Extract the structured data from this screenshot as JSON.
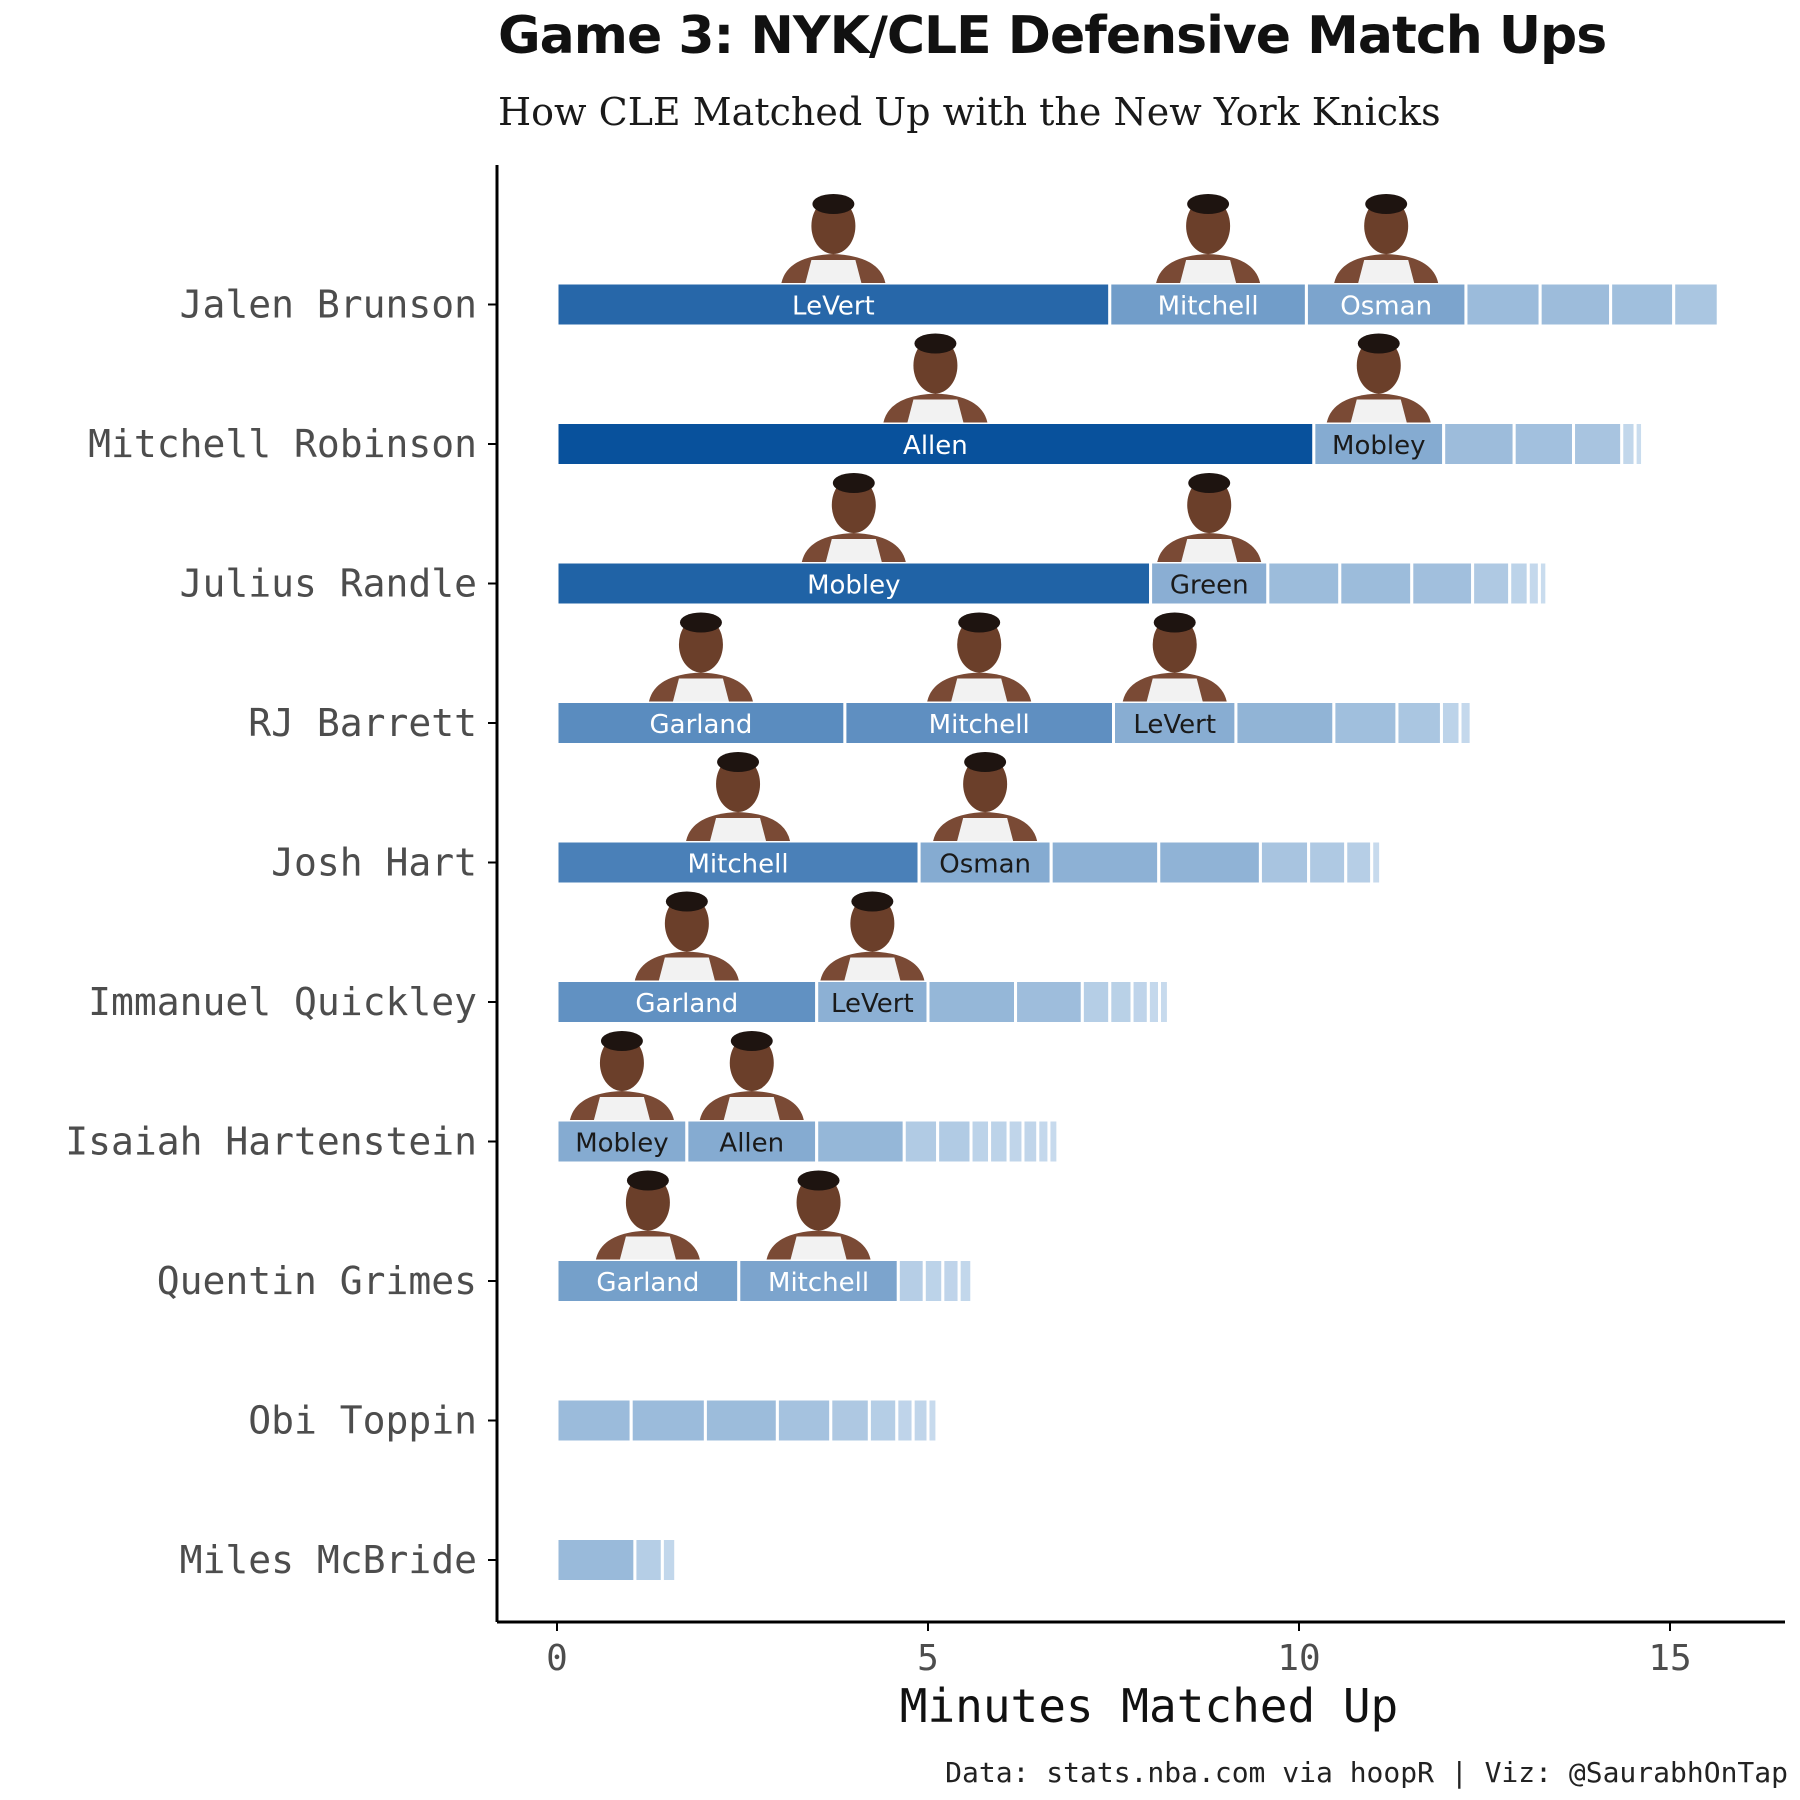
{
  "title": "Game 3: NYK/CLE Defensive Match Ups",
  "subtitle": "How CLE Matched Up with the New York Knicks",
  "caption": "Data: stats.nba.com via hoopR | Viz: @SaurabhOnTap",
  "colors": {
    "scale_low": "#deebf7",
    "scale_high": "#08519c",
    "axis": "#000000",
    "tick_text": "#4d4d4d"
  },
  "chart_data": {
    "type": "bar",
    "orientation": "horizontal",
    "stacked": true,
    "xlabel": "Minutes Matched Up",
    "ylabel": "",
    "xlim": [
      0,
      16.5
    ],
    "x_ticks": [
      "0",
      "5",
      "10",
      "15"
    ],
    "grid": false,
    "legend": "none",
    "note": "Each bar is one Knicks player; segments are time guarded by each CLE defender, darker = more minutes.",
    "rows": [
      {
        "player": "Jalen Brunson",
        "segments": [
          {
            "defender": "LeVert",
            "minutes": 7.45
          },
          {
            "defender": "Mitchell",
            "minutes": 2.65
          },
          {
            "defender": "Osman",
            "minutes": 2.15
          },
          {
            "minutes": 1.0
          },
          {
            "minutes": 0.95
          },
          {
            "minutes": 0.85
          },
          {
            "minutes": 0.6
          }
        ]
      },
      {
        "player": "Mitchell Robinson",
        "segments": [
          {
            "defender": "Allen",
            "minutes": 10.2
          },
          {
            "defender": "Mobley",
            "minutes": 1.75
          },
          {
            "minutes": 0.95
          },
          {
            "minutes": 0.8
          },
          {
            "minutes": 0.65
          },
          {
            "minutes": 0.18
          },
          {
            "minutes": 0.1
          }
        ]
      },
      {
        "player": "Julius Randle",
        "segments": [
          {
            "defender": "Mobley",
            "minutes": 8.0
          },
          {
            "defender": "Green",
            "minutes": 1.58
          },
          {
            "minutes": 0.97
          },
          {
            "minutes": 0.97
          },
          {
            "minutes": 0.82
          },
          {
            "minutes": 0.5
          },
          {
            "minutes": 0.25
          },
          {
            "minutes": 0.15
          },
          {
            "minutes": 0.1
          }
        ]
      },
      {
        "player": "RJ Barrett",
        "segments": [
          {
            "defender": "Garland",
            "minutes": 3.88
          },
          {
            "defender": "Mitchell",
            "minutes": 3.62
          },
          {
            "defender": "LeVert",
            "minutes": 1.65
          },
          {
            "minutes": 1.32
          },
          {
            "minutes": 0.85
          },
          {
            "minutes": 0.6
          },
          {
            "minutes": 0.25
          },
          {
            "minutes": 0.15
          }
        ]
      },
      {
        "player": "Josh Hart",
        "segments": [
          {
            "defender": "Mitchell",
            "minutes": 4.88
          },
          {
            "defender": "Osman",
            "minutes": 1.78
          },
          {
            "minutes": 1.45
          },
          {
            "minutes": 1.37
          },
          {
            "minutes": 0.65
          },
          {
            "minutes": 0.5
          },
          {
            "minutes": 0.35
          },
          {
            "minutes": 0.12
          }
        ]
      },
      {
        "player": "Immanuel Quickley",
        "segments": [
          {
            "defender": "Garland",
            "minutes": 3.5
          },
          {
            "defender": "LeVert",
            "minutes": 1.5
          },
          {
            "minutes": 1.18
          },
          {
            "minutes": 0.9
          },
          {
            "minutes": 0.37
          },
          {
            "minutes": 0.3
          },
          {
            "minutes": 0.22
          },
          {
            "minutes": 0.15
          },
          {
            "minutes": 0.12
          }
        ]
      },
      {
        "player": "Isaiah Hartenstein",
        "segments": [
          {
            "defender": "Mobley",
            "minutes": 1.75
          },
          {
            "defender": "Allen",
            "minutes": 1.75
          },
          {
            "minutes": 1.18
          },
          {
            "minutes": 0.45
          },
          {
            "minutes": 0.45
          },
          {
            "minutes": 0.25
          },
          {
            "minutes": 0.25
          },
          {
            "minutes": 0.2
          },
          {
            "minutes": 0.2
          },
          {
            "minutes": 0.15
          },
          {
            "minutes": 0.12
          }
        ]
      },
      {
        "player": "Quentin Grimes",
        "segments": [
          {
            "defender": "Garland",
            "minutes": 2.45
          },
          {
            "defender": "Mitchell",
            "minutes": 2.15
          },
          {
            "minutes": 0.35
          },
          {
            "minutes": 0.25
          },
          {
            "minutes": 0.22
          },
          {
            "minutes": 0.17
          }
        ]
      },
      {
        "player": "Obi Toppin",
        "segments": [
          {
            "minutes": 1.0
          },
          {
            "minutes": 1.0
          },
          {
            "minutes": 0.97
          },
          {
            "minutes": 0.72
          },
          {
            "minutes": 0.52
          },
          {
            "minutes": 0.37
          },
          {
            "minutes": 0.22
          },
          {
            "minutes": 0.2
          },
          {
            "minutes": 0.12
          }
        ]
      },
      {
        "player": "Miles McBride",
        "segments": [
          {
            "minutes": 1.05
          },
          {
            "minutes": 0.37
          },
          {
            "minutes": 0.18
          }
        ]
      }
    ]
  }
}
